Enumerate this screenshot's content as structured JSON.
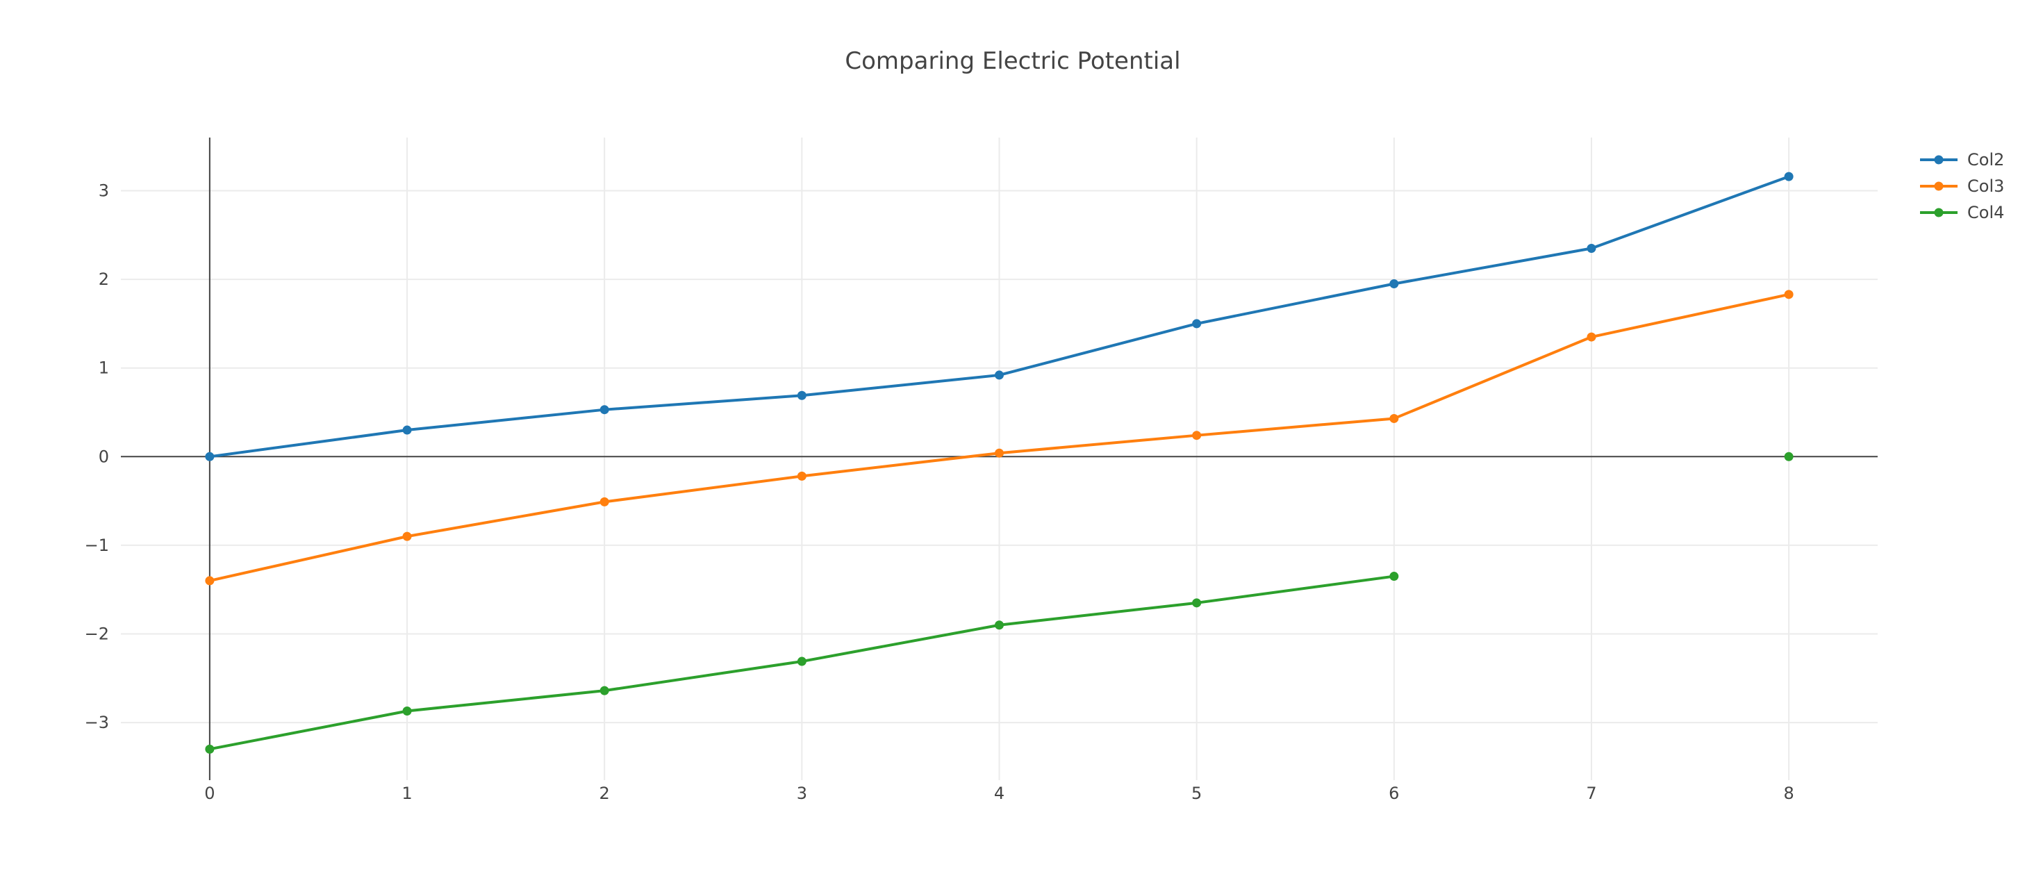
{
  "chart_data": {
    "type": "line",
    "title": "Comparing Electric Potential",
    "xlabel": "",
    "ylabel": "",
    "xlim": [
      -0.45,
      8.45
    ],
    "ylim": [
      -3.65,
      3.6
    ],
    "x_ticks": [
      0,
      1,
      2,
      3,
      4,
      5,
      6,
      7,
      8
    ],
    "y_ticks": [
      -3,
      -2,
      -1,
      0,
      1,
      2,
      3
    ],
    "y_tick_labels": [
      "−3",
      "−2",
      "−1",
      "0",
      "1",
      "2",
      "3"
    ],
    "grid": true,
    "legend": "top-right",
    "series": [
      {
        "name": "Col2",
        "color": "#1f77b4",
        "x": [
          0,
          1,
          2,
          3,
          4,
          5,
          6,
          7,
          8
        ],
        "y": [
          0.0,
          0.3,
          0.53,
          0.69,
          0.92,
          1.5,
          1.95,
          2.35,
          3.16
        ]
      },
      {
        "name": "Col3",
        "color": "#ff7f0e",
        "x": [
          0,
          1,
          2,
          3,
          4,
          5,
          6,
          7,
          8
        ],
        "y": [
          -1.4,
          -0.9,
          -0.51,
          -0.22,
          0.04,
          0.24,
          0.43,
          1.35,
          1.83
        ]
      },
      {
        "name": "Col4",
        "color": "#2ca02c",
        "x": [
          0,
          1,
          2,
          3,
          4,
          5,
          6,
          8
        ],
        "y": [
          -3.3,
          -2.87,
          -2.64,
          -2.31,
          -1.9,
          -1.65,
          -1.35,
          0.0
        ],
        "gap_before_index": 7
      }
    ]
  }
}
